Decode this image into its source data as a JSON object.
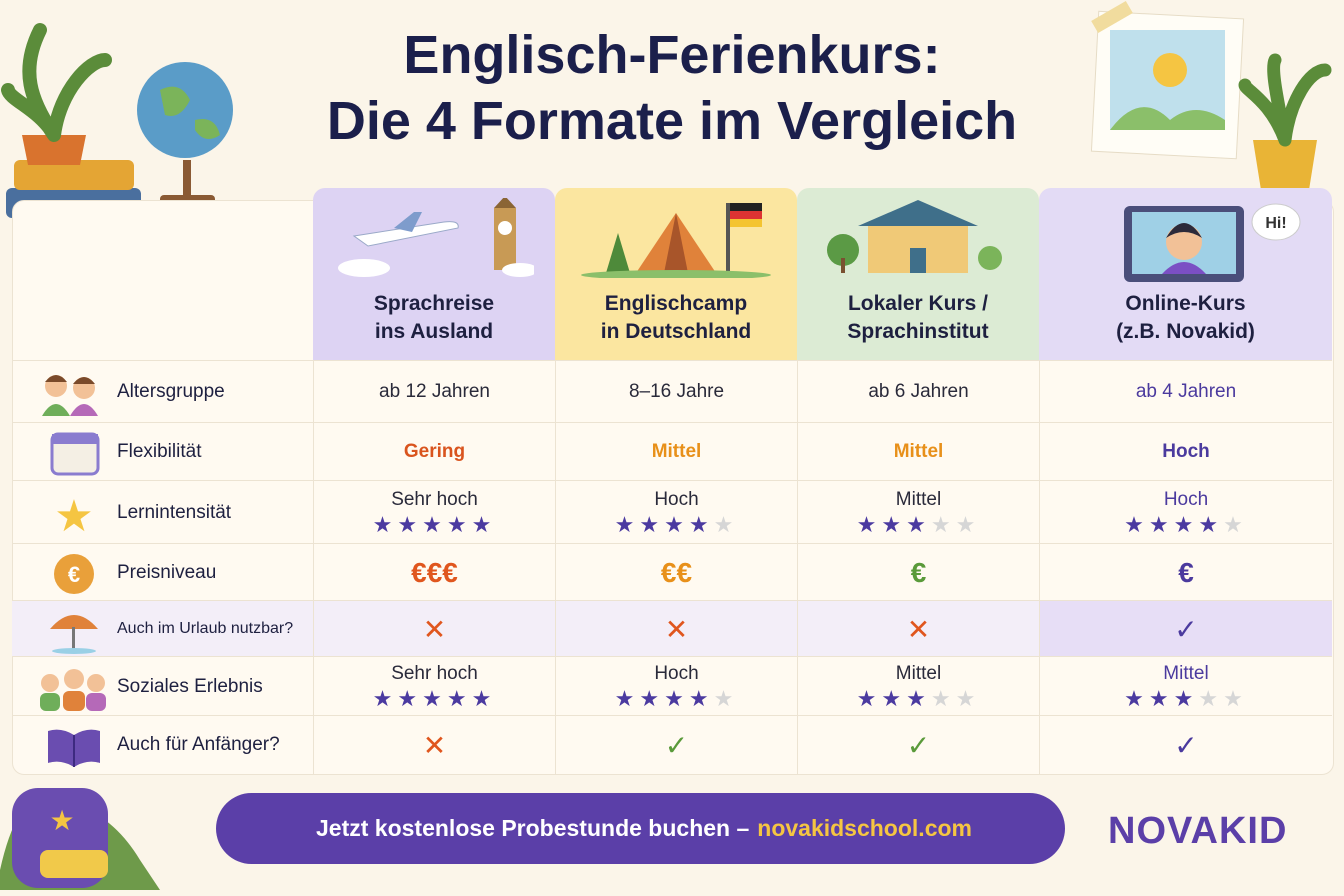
{
  "title": {
    "line1": "Englisch-Ferienkurs:",
    "line2": "Die 4 Formate im Vergleich"
  },
  "illustration_text": "Hi!",
  "star_scale": 5,
  "table": {
    "columns": [
      {
        "line1": "Sprachreise",
        "line2": "ins Ausland"
      },
      {
        "line1": "Englischcamp",
        "line2": "in Deutschland"
      },
      {
        "line1": "Lokaler Kurs /",
        "line2": "Sprachinstitut"
      },
      {
        "line1": "Online-Kurs",
        "line2": "(z.B. Novakid)"
      }
    ],
    "rows": [
      {
        "label": "Altersgruppe",
        "cells": [
          {
            "text": "ab 12 Jahren"
          },
          {
            "text": "8–16 Jahre"
          },
          {
            "text": "ab 6 Jahren"
          },
          {
            "text": "ab 4 Jahren",
            "color": "#4b3a9e"
          }
        ]
      },
      {
        "label": "Flexibilität",
        "cells": [
          {
            "text": "Gering",
            "color": "#d9541e"
          },
          {
            "text": "Mittel",
            "color": "#e8901a"
          },
          {
            "text": "Mittel",
            "color": "#e8901a"
          },
          {
            "text": "Hoch",
            "color": "#4b3a9e"
          }
        ]
      },
      {
        "label": "Lernintensität",
        "cells": [
          {
            "text": "Sehr hoch",
            "stars": 5
          },
          {
            "text": "Hoch",
            "stars": 4
          },
          {
            "text": "Mittel",
            "stars": 3
          },
          {
            "text": "Hoch",
            "stars": 4,
            "color": "#4b3a9e"
          }
        ]
      },
      {
        "label": "Preisniveau",
        "cells": [
          {
            "text": "€€€",
            "color": "#e0561e"
          },
          {
            "text": "€€",
            "color": "#e8901a"
          },
          {
            "text": "€",
            "color": "#5a9a3a"
          },
          {
            "text": "€",
            "color": "#4b3a9e"
          }
        ]
      },
      {
        "label": "Auch im Urlaub nutzbar?",
        "cells": [
          {
            "text": "✕",
            "color": "#e0561e"
          },
          {
            "text": "✕",
            "color": "#e0561e"
          },
          {
            "text": "✕",
            "color": "#e0561e"
          },
          {
            "text": "✓",
            "color": "#4b3a9e"
          }
        ]
      },
      {
        "label": "Soziales Erlebnis",
        "cells": [
          {
            "text": "Sehr hoch",
            "stars": 5
          },
          {
            "text": "Hoch",
            "stars": 4
          },
          {
            "text": "Mittel",
            "stars": 3
          },
          {
            "text": "Mittel",
            "stars": 3,
            "color": "#4b3a9e"
          }
        ]
      },
      {
        "label": "Auch für Anfänger?",
        "cells": [
          {
            "text": "✕",
            "color": "#e0561e"
          },
          {
            "text": "✓",
            "color": "#5a9a3a"
          },
          {
            "text": "✓",
            "color": "#5a9a3a"
          },
          {
            "text": "✓",
            "color": "#4b3a9e"
          }
        ]
      }
    ]
  },
  "cta": {
    "text": "Jetzt kostenlose Probestunde buchen –",
    "link": "novakidschool.com"
  },
  "logo": "NOVAKID"
}
